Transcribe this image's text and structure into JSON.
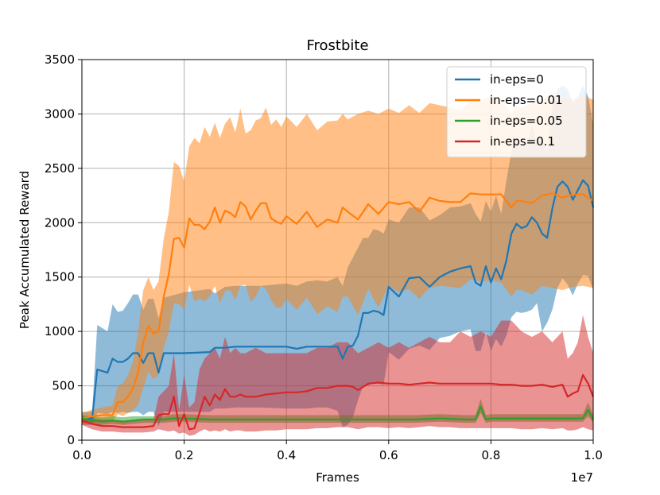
{
  "chart_data": {
    "type": "line",
    "title": "Frostbite",
    "xlabel": "Frames",
    "ylabel": "Peak Accumulated Reward",
    "x_offset_label": "1e7",
    "xlim": [
      0.0,
      1.0
    ],
    "ylim": [
      0,
      3500
    ],
    "xticks": [
      "0.0",
      "0.2",
      "0.4",
      "0.6",
      "0.8",
      "1.0"
    ],
    "yticks": [
      "0",
      "500",
      "1000",
      "1500",
      "2000",
      "2500",
      "3000",
      "3500"
    ],
    "grid": true,
    "legend_position": "top-right",
    "series": [
      {
        "name": "in-eps=0",
        "color": "#1f77b4",
        "band_alpha": 0.5,
        "x": [
          0.0,
          0.02,
          0.03,
          0.05,
          0.06,
          0.07,
          0.08,
          0.09,
          0.1,
          0.11,
          0.12,
          0.13,
          0.14,
          0.15,
          0.16,
          0.2,
          0.25,
          0.26,
          0.28,
          0.3,
          0.35,
          0.4,
          0.42,
          0.44,
          0.46,
          0.48,
          0.5,
          0.51,
          0.52,
          0.53,
          0.54,
          0.55,
          0.56,
          0.57,
          0.58,
          0.59,
          0.6,
          0.62,
          0.64,
          0.66,
          0.68,
          0.7,
          0.72,
          0.74,
          0.76,
          0.77,
          0.78,
          0.79,
          0.8,
          0.81,
          0.82,
          0.83,
          0.84,
          0.85,
          0.86,
          0.87,
          0.88,
          0.89,
          0.9,
          0.91,
          0.92,
          0.93,
          0.94,
          0.95,
          0.96,
          0.97,
          0.98,
          0.99,
          1.0
        ],
        "y": [
          200,
          200,
          650,
          620,
          750,
          720,
          720,
          750,
          800,
          800,
          710,
          800,
          800,
          620,
          800,
          800,
          810,
          850,
          850,
          860,
          860,
          860,
          840,
          860,
          860,
          860,
          860,
          750,
          860,
          870,
          960,
          1170,
          1170,
          1190,
          1180,
          1150,
          1410,
          1320,
          1490,
          1500,
          1410,
          1500,
          1550,
          1580,
          1600,
          1450,
          1420,
          1600,
          1450,
          1580,
          1480,
          1650,
          1900,
          1990,
          1950,
          1970,
          2050,
          2000,
          1900,
          1860,
          2130,
          2330,
          2380,
          2330,
          2210,
          2300,
          2390,
          2340,
          2140
        ],
        "upper": [
          260,
          260,
          1060,
          1000,
          1250,
          1180,
          1190,
          1260,
          1340,
          1340,
          1200,
          1300,
          1300,
          1120,
          1310,
          1360,
          1390,
          1350,
          1410,
          1420,
          1420,
          1440,
          1420,
          1460,
          1470,
          1460,
          1500,
          1420,
          1590,
          1680,
          1770,
          1860,
          1860,
          1940,
          1930,
          1900,
          2030,
          2000,
          2140,
          2140,
          2020,
          2070,
          2140,
          2150,
          2180,
          2080,
          2010,
          2200,
          2100,
          2250,
          2080,
          2380,
          2660,
          2790,
          2700,
          2730,
          2890,
          2730,
          2810,
          2640,
          3070,
          3230,
          3260,
          3230,
          3100,
          3160,
          3260,
          3160,
          2900
        ],
        "lower": [
          140,
          140,
          250,
          240,
          260,
          250,
          260,
          250,
          260,
          260,
          230,
          260,
          260,
          130,
          260,
          260,
          260,
          290,
          290,
          300,
          300,
          290,
          290,
          290,
          300,
          300,
          270,
          120,
          140,
          210,
          370,
          500,
          500,
          530,
          520,
          510,
          810,
          740,
          840,
          870,
          830,
          940,
          960,
          1000,
          1020,
          820,
          820,
          990,
          820,
          930,
          860,
          960,
          1130,
          1180,
          1170,
          1180,
          1200,
          1260,
          1000,
          1080,
          1200,
          1400,
          1490,
          1430,
          1330,
          1440,
          1520,
          1510,
          1380
        ]
      },
      {
        "name": "in-eps=0.01",
        "color": "#ff7f0e",
        "band_alpha": 0.5,
        "x": [
          0.0,
          0.02,
          0.04,
          0.06,
          0.07,
          0.08,
          0.09,
          0.1,
          0.11,
          0.12,
          0.13,
          0.14,
          0.15,
          0.16,
          0.17,
          0.18,
          0.19,
          0.2,
          0.21,
          0.22,
          0.23,
          0.24,
          0.25,
          0.26,
          0.27,
          0.28,
          0.29,
          0.3,
          0.31,
          0.32,
          0.33,
          0.34,
          0.35,
          0.36,
          0.37,
          0.38,
          0.39,
          0.4,
          0.42,
          0.44,
          0.46,
          0.48,
          0.5,
          0.51,
          0.52,
          0.54,
          0.56,
          0.58,
          0.6,
          0.62,
          0.64,
          0.66,
          0.68,
          0.7,
          0.72,
          0.74,
          0.76,
          0.78,
          0.8,
          0.82,
          0.84,
          0.85,
          0.86,
          0.88,
          0.9,
          0.92,
          0.94,
          0.96,
          0.98,
          1.0
        ],
        "y": [
          200,
          220,
          230,
          230,
          350,
          350,
          400,
          480,
          620,
          900,
          1050,
          980,
          1000,
          1320,
          1530,
          1850,
          1860,
          1770,
          2040,
          1980,
          1980,
          1940,
          2010,
          2140,
          2000,
          2110,
          2090,
          2050,
          2190,
          2150,
          2030,
          2110,
          2180,
          2180,
          2040,
          2010,
          1990,
          2060,
          1990,
          2100,
          1960,
          2030,
          2000,
          2140,
          2100,
          2030,
          2170,
          2080,
          2190,
          2170,
          2190,
          2100,
          2230,
          2200,
          2190,
          2190,
          2270,
          2260,
          2260,
          2260,
          2140,
          2200,
          2200,
          2180,
          2250,
          2270,
          2230,
          2260,
          2260,
          2200
        ],
        "upper": [
          250,
          280,
          300,
          320,
          500,
          520,
          600,
          720,
          1000,
          1380,
          1500,
          1380,
          1460,
          1850,
          2100,
          2560,
          2520,
          2380,
          2700,
          2780,
          2730,
          2880,
          2790,
          2920,
          2780,
          2910,
          2970,
          2830,
          3050,
          2820,
          2850,
          2940,
          2960,
          3060,
          2900,
          2950,
          2880,
          2980,
          2880,
          3000,
          2850,
          2930,
          2940,
          3000,
          2950,
          3000,
          3030,
          3000,
          3050,
          3010,
          3080,
          3010,
          3100,
          3080,
          3060,
          3030,
          3120,
          3130,
          3160,
          3140,
          3000,
          3070,
          3060,
          3100,
          3130,
          3200,
          3160,
          3130,
          3170,
          3130
        ],
        "lower": [
          150,
          160,
          170,
          170,
          240,
          220,
          250,
          280,
          320,
          480,
          630,
          560,
          600,
          850,
          1000,
          1260,
          1250,
          1200,
          1430,
          1280,
          1300,
          1280,
          1320,
          1420,
          1260,
          1370,
          1380,
          1290,
          1420,
          1430,
          1270,
          1320,
          1420,
          1390,
          1290,
          1220,
          1220,
          1300,
          1200,
          1310,
          1160,
          1230,
          1180,
          1320,
          1320,
          1150,
          1390,
          1220,
          1420,
          1360,
          1390,
          1300,
          1400,
          1420,
          1410,
          1400,
          1480,
          1460,
          1470,
          1450,
          1320,
          1380,
          1380,
          1340,
          1420,
          1400,
          1380,
          1410,
          1420,
          1400
        ]
      },
      {
        "name": "in-eps=0.05",
        "color": "#2ca02c",
        "band_alpha": 0.5,
        "x": [
          0.0,
          0.02,
          0.04,
          0.06,
          0.08,
          0.1,
          0.12,
          0.14,
          0.16,
          0.18,
          0.2,
          0.25,
          0.3,
          0.35,
          0.4,
          0.45,
          0.5,
          0.55,
          0.6,
          0.65,
          0.7,
          0.75,
          0.76,
          0.77,
          0.78,
          0.79,
          0.8,
          0.85,
          0.9,
          0.95,
          0.98,
          0.99,
          1.0
        ],
        "y": [
          200,
          180,
          170,
          180,
          170,
          180,
          190,
          190,
          190,
          200,
          200,
          190,
          190,
          190,
          190,
          190,
          190,
          190,
          190,
          190,
          200,
          190,
          190,
          190,
          310,
          190,
          200,
          200,
          200,
          200,
          200,
          280,
          190
        ],
        "upper": [
          230,
          220,
          210,
          220,
          210,
          220,
          220,
          220,
          220,
          240,
          240,
          230,
          230,
          230,
          230,
          230,
          230,
          230,
          230,
          230,
          240,
          230,
          230,
          230,
          380,
          230,
          240,
          240,
          240,
          240,
          240,
          350,
          230
        ],
        "lower": [
          170,
          150,
          140,
          150,
          140,
          150,
          160,
          160,
          160,
          170,
          170,
          160,
          160,
          160,
          160,
          160,
          160,
          160,
          160,
          160,
          170,
          160,
          160,
          160,
          250,
          160,
          170,
          170,
          170,
          170,
          170,
          220,
          160
        ]
      },
      {
        "name": "in-eps=0.1",
        "color": "#d62728",
        "band_alpha": 0.5,
        "x": [
          0.0,
          0.02,
          0.04,
          0.06,
          0.08,
          0.1,
          0.12,
          0.14,
          0.15,
          0.16,
          0.17,
          0.18,
          0.19,
          0.2,
          0.21,
          0.22,
          0.23,
          0.24,
          0.25,
          0.26,
          0.27,
          0.28,
          0.29,
          0.3,
          0.31,
          0.32,
          0.34,
          0.36,
          0.38,
          0.4,
          0.42,
          0.44,
          0.46,
          0.48,
          0.5,
          0.52,
          0.53,
          0.54,
          0.56,
          0.58,
          0.6,
          0.62,
          0.64,
          0.66,
          0.68,
          0.7,
          0.72,
          0.74,
          0.76,
          0.78,
          0.8,
          0.82,
          0.84,
          0.86,
          0.88,
          0.9,
          0.92,
          0.94,
          0.95,
          0.96,
          0.97,
          0.98,
          0.99,
          1.0
        ],
        "y": [
          180,
          150,
          130,
          130,
          120,
          120,
          120,
          130,
          230,
          240,
          240,
          400,
          130,
          240,
          100,
          110,
          250,
          400,
          320,
          420,
          370,
          470,
          400,
          400,
          420,
          400,
          400,
          420,
          430,
          440,
          440,
          450,
          480,
          480,
          500,
          500,
          490,
          460,
          520,
          530,
          520,
          520,
          510,
          520,
          530,
          520,
          520,
          520,
          520,
          520,
          520,
          510,
          510,
          500,
          500,
          510,
          490,
          510,
          400,
          430,
          450,
          600,
          520,
          400
        ],
        "upper": [
          220,
          200,
          190,
          190,
          180,
          180,
          180,
          190,
          400,
          450,
          500,
          800,
          280,
          600,
          300,
          350,
          650,
          750,
          800,
          850,
          750,
          950,
          800,
          850,
          800,
          800,
          850,
          800,
          800,
          800,
          800,
          800,
          850,
          850,
          900,
          900,
          850,
          800,
          850,
          900,
          850,
          900,
          850,
          900,
          950,
          900,
          900,
          1000,
          950,
          1000,
          950,
          1100,
          1100,
          1000,
          950,
          1000,
          900,
          1000,
          750,
          800,
          900,
          1150,
          950,
          800
        ],
        "lower": [
          140,
          100,
          80,
          80,
          70,
          70,
          70,
          80,
          100,
          90,
          80,
          90,
          60,
          70,
          40,
          50,
          80,
          100,
          80,
          90,
          80,
          100,
          80,
          90,
          90,
          80,
          80,
          90,
          90,
          100,
          100,
          100,
          110,
          110,
          120,
          120,
          110,
          100,
          120,
          120,
          110,
          120,
          110,
          120,
          130,
          120,
          120,
          110,
          110,
          110,
          110,
          110,
          110,
          100,
          100,
          110,
          100,
          110,
          90,
          90,
          100,
          120,
          100,
          90
        ]
      }
    ]
  }
}
